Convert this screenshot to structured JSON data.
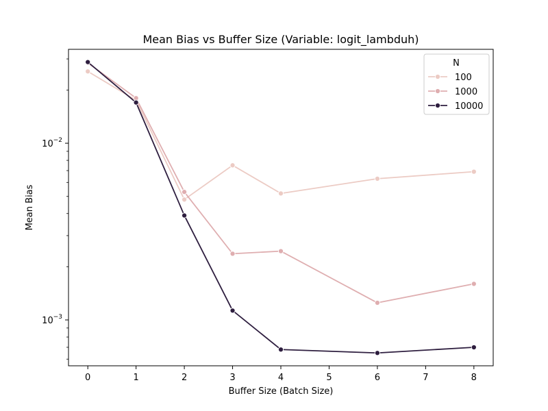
{
  "chart_data": {
    "type": "line",
    "title": "Mean Bias vs Buffer Size (Variable: logit_lambduh)",
    "xlabel": "Buffer Size (Batch Size)",
    "ylabel": "Mean Bias",
    "x": [
      0,
      1,
      2,
      3,
      4,
      6,
      8
    ],
    "xlim": [
      -0.4,
      8.4
    ],
    "x_ticks": [
      0,
      1,
      2,
      3,
      4,
      5,
      6,
      7,
      8
    ],
    "y_scale": "log",
    "ylim": [
      0.00055,
      0.034
    ],
    "y_ticks": [
      {
        "value": 0.01,
        "base": "10",
        "exp": "−2"
      },
      {
        "value": 0.001,
        "base": "10",
        "exp": "−3"
      }
    ],
    "grid": false,
    "legend": {
      "title": "N",
      "position": "top-right"
    },
    "series": [
      {
        "name": "100",
        "color": "#eccbc4",
        "values": [
          0.0255,
          0.0175,
          0.0048,
          0.0075,
          0.0052,
          0.0063,
          0.0069
        ]
      },
      {
        "name": "1000",
        "color": "#dfaeb0",
        "values": [
          0.0285,
          0.018,
          0.0053,
          0.00237,
          0.00245,
          0.00125,
          0.0016
        ]
      },
      {
        "name": "10000",
        "color": "#2e1e3f",
        "values": [
          0.0288,
          0.017,
          0.0039,
          0.00113,
          0.00068,
          0.00065,
          0.0007
        ]
      }
    ]
  }
}
